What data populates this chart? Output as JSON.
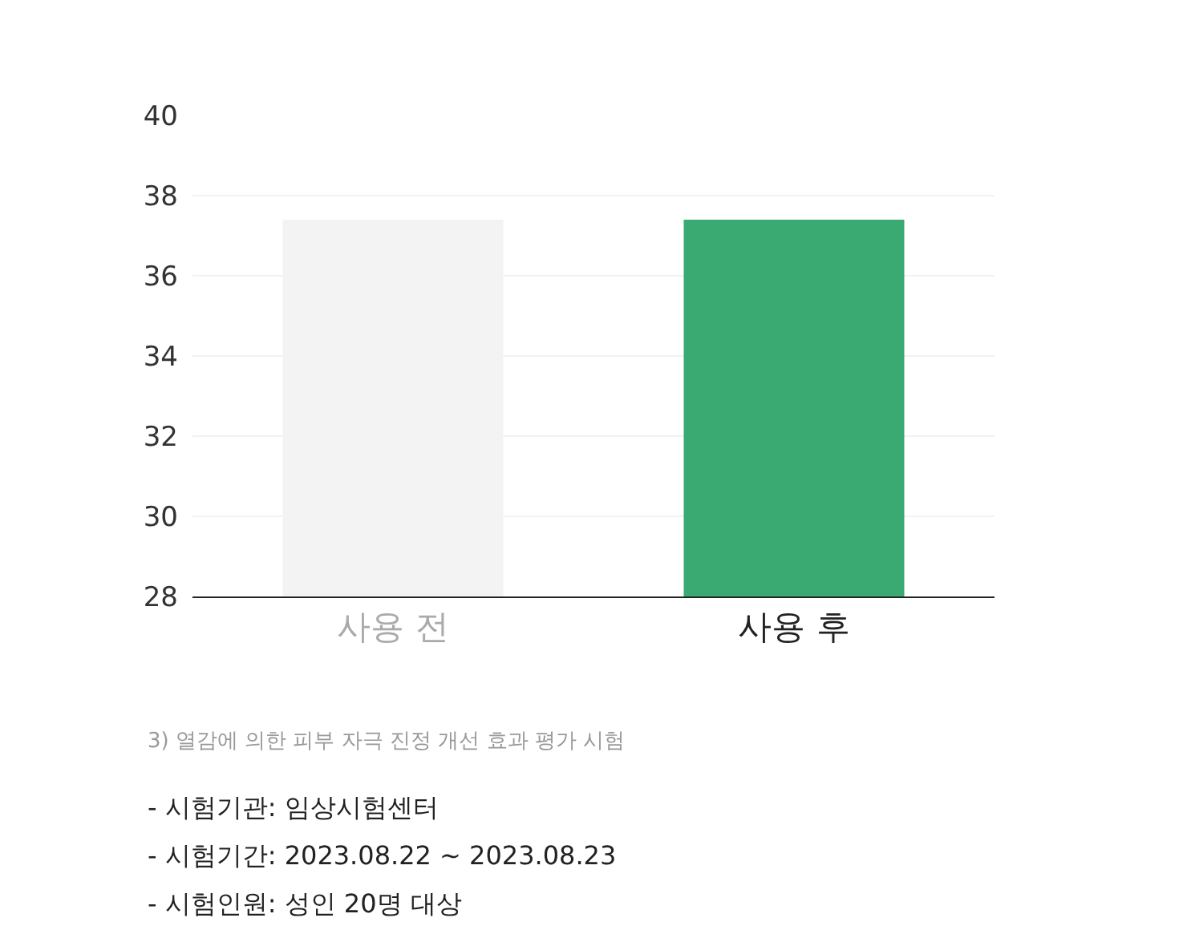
{
  "chart_data": {
    "type": "bar",
    "categories": [
      "사용 전",
      "사용 후"
    ],
    "values": [
      37.4,
      37.4
    ],
    "colors": [
      "#f3f3f3",
      "#3aaa72"
    ],
    "ylim": [
      28,
      40
    ],
    "yticks": [
      28,
      30,
      32,
      34,
      36,
      38,
      40
    ],
    "grid": "y",
    "annotations": [
      "3) 열감에 의한 피부 자극 진정 개선 효과 평가 시험",
      "- 시험기관: 임상시험센터",
      "- 시험기간: 2023.08.22 ~ 2023.08.23",
      "- 시험인원: 성인 20명 대상"
    ]
  }
}
